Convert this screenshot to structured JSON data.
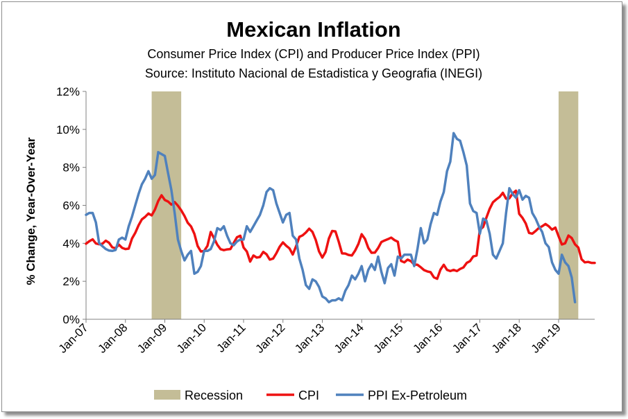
{
  "chart_data": {
    "type": "line",
    "title": "Mexican Inflation",
    "subtitle": "Consumer Price Index (CPI) and Producer Price Index (PPI)",
    "source": "Source:  Instituto Nacional de Estadistica y Geografia (INEGI)",
    "xlabel": "",
    "ylabel": "% Change, Year-Over-Year",
    "x_start": "2007-01",
    "x_end": "2019-12",
    "xticks": [
      "Jan-07",
      "Jan-08",
      "Jan-09",
      "Jan-10",
      "Jan-11",
      "Jan-12",
      "Jan-13",
      "Jan-14",
      "Jan-15",
      "Jan-16",
      "Jan-17",
      "Jan-18",
      "Jan-19"
    ],
    "yticks": [
      "0%",
      "2%",
      "4%",
      "6%",
      "8%",
      "10%",
      "12%"
    ],
    "ylim": [
      0,
      12
    ],
    "grid": false,
    "legend_position": "bottom",
    "recessions": [
      {
        "label": "Recession",
        "start": "2008-09",
        "end": "2009-06"
      },
      {
        "label": "Recession",
        "start": "2019-01",
        "end": "2019-07"
      }
    ],
    "series": [
      {
        "name": "CPI",
        "color": "#ee1111",
        "values": [
          3.98,
          4.11,
          4.21,
          3.99,
          3.95,
          3.98,
          4.14,
          4.03,
          3.79,
          3.74,
          3.93,
          3.76,
          3.7,
          3.72,
          4.25,
          4.55,
          4.95,
          5.26,
          5.39,
          5.57,
          5.47,
          5.78,
          6.23,
          6.53,
          6.28,
          6.2,
          6.04,
          6.17,
          5.98,
          5.74,
          5.44,
          5.08,
          4.89,
          4.5,
          3.86,
          3.57,
          3.6,
          3.87,
          4.6,
          4.27,
          3.92,
          3.69,
          3.64,
          3.68,
          3.7,
          4.02,
          4.32,
          4.4,
          3.78,
          3.57,
          3.04,
          3.36,
          3.25,
          3.28,
          3.55,
          3.42,
          3.14,
          3.2,
          3.48,
          3.82,
          4.05,
          3.87,
          3.73,
          3.41,
          3.85,
          4.34,
          4.42,
          4.57,
          4.77,
          4.6,
          4.18,
          3.57,
          3.25,
          3.55,
          4.25,
          4.65,
          4.63,
          4.09,
          3.47,
          3.46,
          3.39,
          3.36,
          3.62,
          3.97,
          4.48,
          4.23,
          3.76,
          3.5,
          3.51,
          3.75,
          4.07,
          4.15,
          4.22,
          4.3,
          4.17,
          4.08,
          3.07,
          3.0,
          3.14,
          3.06,
          2.88,
          2.87,
          2.74,
          2.59,
          2.52,
          2.48,
          2.21,
          2.13,
          2.61,
          2.87,
          2.6,
          2.54,
          2.6,
          2.54,
          2.65,
          2.73,
          2.97,
          3.06,
          3.31,
          3.36,
          4.72,
          4.86,
          5.35,
          5.82,
          6.16,
          6.31,
          6.44,
          6.66,
          6.35,
          6.37,
          6.63,
          6.77,
          5.55,
          5.34,
          5.04,
          4.55,
          4.51,
          4.65,
          4.81,
          4.9,
          5.02,
          4.9,
          4.72,
          4.83,
          4.37,
          3.94,
          4.0,
          4.41,
          4.28,
          3.95,
          3.78,
          3.16,
          3.0,
          3.02,
          2.97,
          2.97
        ]
      },
      {
        "name": "PPI Ex-Petroleum",
        "color": "#4f81bd",
        "values": [
          5.5,
          5.6,
          5.6,
          5.1,
          4.0,
          3.85,
          3.7,
          3.62,
          3.6,
          3.65,
          4.2,
          4.3,
          4.2,
          4.9,
          5.4,
          6.0,
          6.6,
          7.1,
          7.4,
          7.8,
          7.4,
          7.6,
          8.8,
          8.7,
          8.6,
          7.7,
          6.8,
          5.6,
          4.2,
          3.6,
          3.1,
          3.4,
          3.6,
          2.4,
          2.5,
          2.8,
          3.6,
          3.6,
          3.7,
          4.1,
          4.8,
          4.7,
          4.9,
          4.4,
          4.0,
          3.9,
          4.1,
          4.2,
          4.2,
          4.9,
          4.6,
          4.9,
          5.2,
          5.5,
          6.0,
          6.7,
          6.9,
          6.8,
          6.1,
          5.6,
          5.1,
          5.5,
          5.6,
          4.4,
          4.2,
          3.2,
          2.6,
          1.8,
          1.6,
          2.1,
          2.0,
          1.7,
          1.2,
          1.1,
          0.9,
          1.0,
          1.0,
          1.1,
          1.0,
          1.5,
          1.8,
          2.3,
          2.1,
          2.4,
          2.8,
          2.0,
          2.6,
          2.9,
          2.6,
          3.3,
          2.5,
          1.9,
          2.7,
          2.9,
          2.3,
          3.3,
          3.2,
          3.4,
          3.4,
          3.4,
          2.8,
          3.7,
          4.8,
          4.0,
          4.2,
          5.0,
          5.6,
          5.5,
          6.2,
          6.7,
          7.8,
          8.3,
          9.8,
          9.5,
          9.4,
          8.8,
          8.1,
          6.1,
          5.7,
          5.6,
          4.5,
          5.3,
          5.2,
          4.5,
          3.4,
          3.2,
          3.6,
          4.0,
          5.6,
          6.9,
          6.6,
          6.4,
          6.8,
          6.3,
          6.5,
          6.4,
          5.6,
          5.3,
          4.9,
          4.6,
          4.0,
          3.8,
          3.0,
          2.6,
          2.4,
          3.4,
          3.0,
          2.8,
          2.2,
          0.9
        ]
      }
    ],
    "legend": [
      {
        "label": "Recession"
      },
      {
        "label": "CPI"
      },
      {
        "label": "PPI Ex-Petroleum"
      }
    ]
  }
}
